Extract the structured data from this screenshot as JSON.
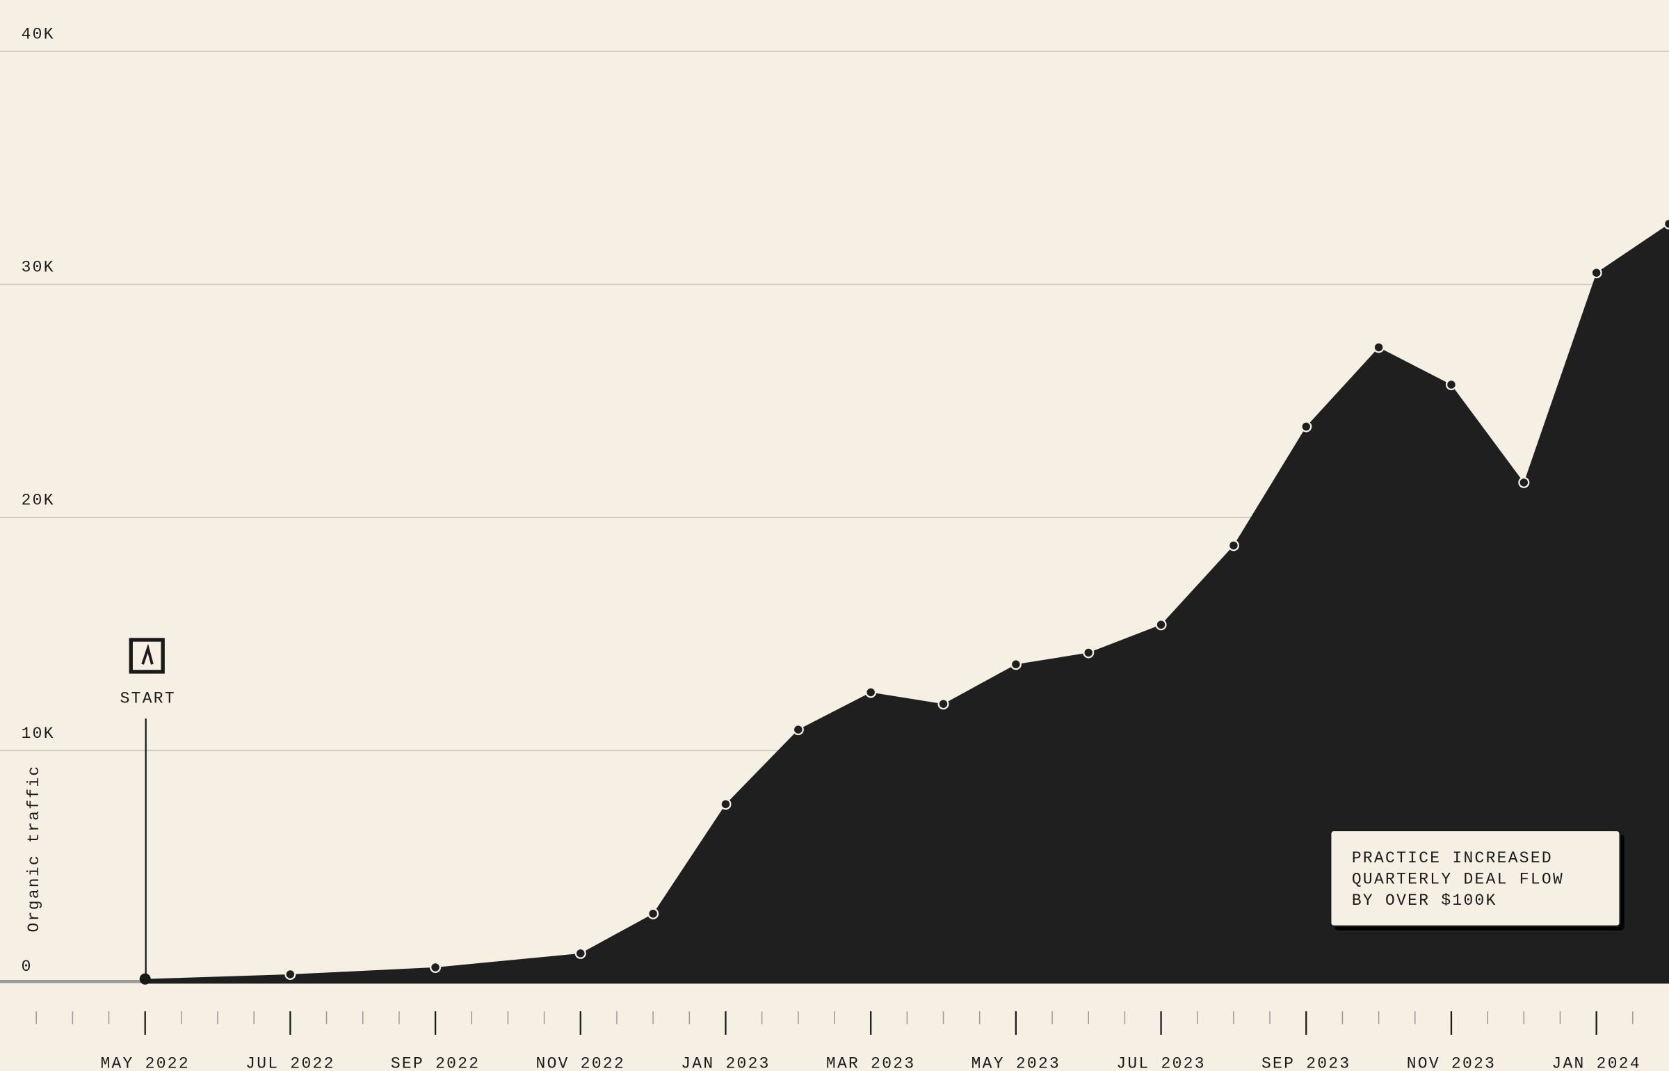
{
  "chart_data": {
    "type": "area",
    "y_label": "Organic traffic",
    "x": [
      "2022-05",
      "2022-07",
      "2022-09",
      "2022-11",
      "2022-12",
      "2023-01",
      "2023-02",
      "2023-03",
      "2023-04",
      "2023-05",
      "2023-06",
      "2023-07",
      "2023-08",
      "2023-09",
      "2023-10",
      "2023-11",
      "2023-12",
      "2024-01",
      "2024-02"
    ],
    "series": [
      {
        "name": "Organic traffic",
        "color": "#1f1f1f",
        "values": [
          200,
          400,
          700,
          1300,
          3000,
          7700,
          10900,
          12500,
          12000,
          13700,
          14200,
          15400,
          18800,
          23900,
          27300,
          25700,
          21500,
          30500,
          32600
        ]
      }
    ],
    "xlim": [
      "2022-03",
      "2024-02"
    ],
    "xticks": [
      {
        "value": "2022-05",
        "label": "MAY 2022"
      },
      {
        "value": "2022-07",
        "label": "JUL 2022"
      },
      {
        "value": "2022-09",
        "label": "SEP 2022"
      },
      {
        "value": "2022-11",
        "label": "NOV 2022"
      },
      {
        "value": "2023-01",
        "label": "JAN 2023"
      },
      {
        "value": "2023-03",
        "label": "MAR 2023"
      },
      {
        "value": "2023-05",
        "label": "MAY 2023"
      },
      {
        "value": "2023-07",
        "label": "JUL 2023"
      },
      {
        "value": "2023-09",
        "label": "SEP 2023"
      },
      {
        "value": "2023-11",
        "label": "NOV 2023"
      },
      {
        "value": "2024-01",
        "label": "JAN 2024"
      }
    ],
    "ylim": [
      0,
      42200
    ],
    "yticks": [
      0,
      {
        "value": 10000,
        "label": "10K"
      },
      {
        "value": 20000,
        "label": "20K"
      },
      {
        "value": 30000,
        "label": "30K"
      },
      {
        "value": 40000,
        "label": "40K"
      }
    ],
    "grid": true,
    "start_label": "START",
    "annotation": [
      "PRACTICE INCREASED",
      "QUARTERLY DEAL FLOW",
      "BY OVER $100K"
    ]
  }
}
